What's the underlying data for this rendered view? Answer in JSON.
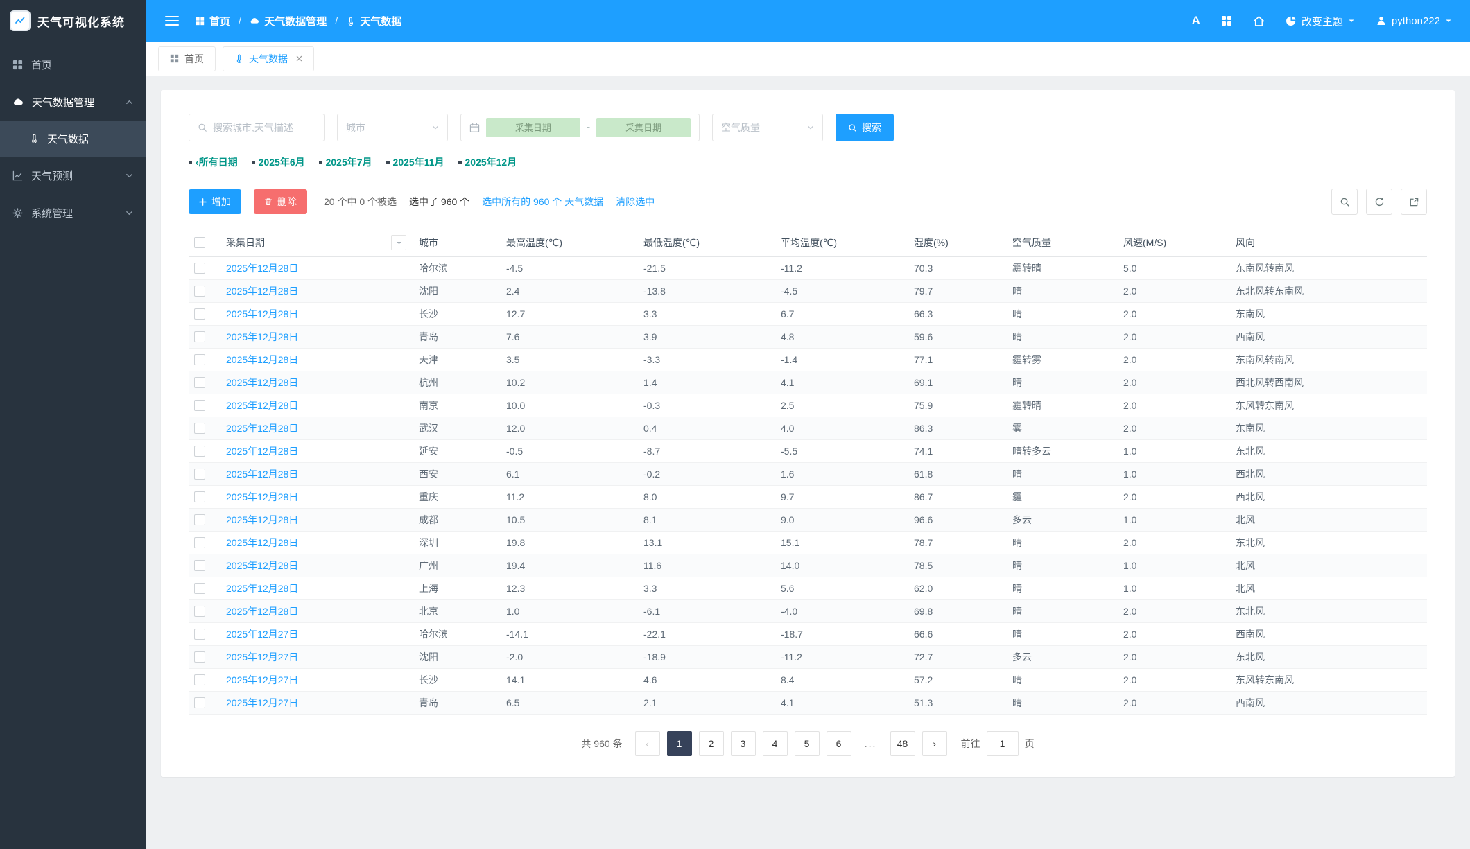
{
  "app": {
    "title": "天气可视化系统",
    "theme_color": "#1e9fff"
  },
  "topbar": {
    "breadcrumb": [
      {
        "label": "首页"
      },
      {
        "label": "天气数据管理"
      },
      {
        "label": "天气数据"
      }
    ],
    "separator": "/",
    "font_icon_label": "A",
    "theme_label": "改变主题",
    "username": "python222"
  },
  "sidebar": {
    "items": [
      {
        "label": "首页"
      },
      {
        "label": "天气数据管理",
        "expanded": true,
        "children": [
          {
            "label": "天气数据",
            "active": true
          }
        ]
      },
      {
        "label": "天气预测"
      },
      {
        "label": "系统管理"
      }
    ]
  },
  "tabs": [
    {
      "label": "首页"
    },
    {
      "label": "天气数据",
      "active": true,
      "closable": true
    }
  ],
  "filters": {
    "search_placeholder": "搜索城市,天气描述",
    "city_placeholder": "城市",
    "date_start_placeholder": "采集日期",
    "date_range_separator": "-",
    "date_end_placeholder": "采集日期",
    "air_quality_placeholder": "空气质量",
    "search_button_label": "搜索",
    "date_links": [
      "‹所有日期",
      "2025年6月",
      "2025年7月",
      "2025年11月",
      "2025年12月"
    ]
  },
  "toolbar": {
    "add_label": "增加",
    "delete_label": "删除",
    "selection_summary": "20 个中 0 个被选",
    "selected_info": "选中了 960 个",
    "select_all_label": "选中所有的 960 个 天气数据",
    "clear_selection_label": "清除选中"
  },
  "table": {
    "columns": [
      "采集日期",
      "城市",
      "最高温度(℃)",
      "最低温度(℃)",
      "平均温度(℃)",
      "湿度(%)",
      "空气质量",
      "风速(M/S)",
      "风向"
    ],
    "rows": [
      {
        "date": "2025年12月28日",
        "city": "哈尔滨",
        "high": "-4.5",
        "low": "-21.5",
        "avg": "-11.2",
        "humidity": "70.3",
        "air": "霾转晴",
        "wind_speed": "5.0",
        "wind_dir": "东南风转南风"
      },
      {
        "date": "2025年12月28日",
        "city": "沈阳",
        "high": "2.4",
        "low": "-13.8",
        "avg": "-4.5",
        "humidity": "79.7",
        "air": "晴",
        "wind_speed": "2.0",
        "wind_dir": "东北风转东南风"
      },
      {
        "date": "2025年12月28日",
        "city": "长沙",
        "high": "12.7",
        "low": "3.3",
        "avg": "6.7",
        "humidity": "66.3",
        "air": "晴",
        "wind_speed": "2.0",
        "wind_dir": "东南风"
      },
      {
        "date": "2025年12月28日",
        "city": "青岛",
        "high": "7.6",
        "low": "3.9",
        "avg": "4.8",
        "humidity": "59.6",
        "air": "晴",
        "wind_speed": "2.0",
        "wind_dir": "西南风"
      },
      {
        "date": "2025年12月28日",
        "city": "天津",
        "high": "3.5",
        "low": "-3.3",
        "avg": "-1.4",
        "humidity": "77.1",
        "air": "霾转雾",
        "wind_speed": "2.0",
        "wind_dir": "东南风转南风"
      },
      {
        "date": "2025年12月28日",
        "city": "杭州",
        "high": "10.2",
        "low": "1.4",
        "avg": "4.1",
        "humidity": "69.1",
        "air": "晴",
        "wind_speed": "2.0",
        "wind_dir": "西北风转西南风"
      },
      {
        "date": "2025年12月28日",
        "city": "南京",
        "high": "10.0",
        "low": "-0.3",
        "avg": "2.5",
        "humidity": "75.9",
        "air": "霾转晴",
        "wind_speed": "2.0",
        "wind_dir": "东风转东南风"
      },
      {
        "date": "2025年12月28日",
        "city": "武汉",
        "high": "12.0",
        "low": "0.4",
        "avg": "4.0",
        "humidity": "86.3",
        "air": "雾",
        "wind_speed": "2.0",
        "wind_dir": "东南风"
      },
      {
        "date": "2025年12月28日",
        "city": "延安",
        "high": "-0.5",
        "low": "-8.7",
        "avg": "-5.5",
        "humidity": "74.1",
        "air": "晴转多云",
        "wind_speed": "1.0",
        "wind_dir": "东北风"
      },
      {
        "date": "2025年12月28日",
        "city": "西安",
        "high": "6.1",
        "low": "-0.2",
        "avg": "1.6",
        "humidity": "61.8",
        "air": "晴",
        "wind_speed": "1.0",
        "wind_dir": "西北风"
      },
      {
        "date": "2025年12月28日",
        "city": "重庆",
        "high": "11.2",
        "low": "8.0",
        "avg": "9.7",
        "humidity": "86.7",
        "air": "霾",
        "wind_speed": "2.0",
        "wind_dir": "西北风"
      },
      {
        "date": "2025年12月28日",
        "city": "成都",
        "high": "10.5",
        "low": "8.1",
        "avg": "9.0",
        "humidity": "96.6",
        "air": "多云",
        "wind_speed": "1.0",
        "wind_dir": "北风"
      },
      {
        "date": "2025年12月28日",
        "city": "深圳",
        "high": "19.8",
        "low": "13.1",
        "avg": "15.1",
        "humidity": "78.7",
        "air": "晴",
        "wind_speed": "2.0",
        "wind_dir": "东北风"
      },
      {
        "date": "2025年12月28日",
        "city": "广州",
        "high": "19.4",
        "low": "11.6",
        "avg": "14.0",
        "humidity": "78.5",
        "air": "晴",
        "wind_speed": "1.0",
        "wind_dir": "北风"
      },
      {
        "date": "2025年12月28日",
        "city": "上海",
        "high": "12.3",
        "low": "3.3",
        "avg": "5.6",
        "humidity": "62.0",
        "air": "晴",
        "wind_speed": "1.0",
        "wind_dir": "北风"
      },
      {
        "date": "2025年12月28日",
        "city": "北京",
        "high": "1.0",
        "low": "-6.1",
        "avg": "-4.0",
        "humidity": "69.8",
        "air": "晴",
        "wind_speed": "2.0",
        "wind_dir": "东北风"
      },
      {
        "date": "2025年12月27日",
        "city": "哈尔滨",
        "high": "-14.1",
        "low": "-22.1",
        "avg": "-18.7",
        "humidity": "66.6",
        "air": "晴",
        "wind_speed": "2.0",
        "wind_dir": "西南风"
      },
      {
        "date": "2025年12月27日",
        "city": "沈阳",
        "high": "-2.0",
        "low": "-18.9",
        "avg": "-11.2",
        "humidity": "72.7",
        "air": "多云",
        "wind_speed": "2.0",
        "wind_dir": "东北风"
      },
      {
        "date": "2025年12月27日",
        "city": "长沙",
        "high": "14.1",
        "low": "4.6",
        "avg": "8.4",
        "humidity": "57.2",
        "air": "晴",
        "wind_speed": "2.0",
        "wind_dir": "东风转东南风"
      },
      {
        "date": "2025年12月27日",
        "city": "青岛",
        "high": "6.5",
        "low": "2.1",
        "avg": "4.1",
        "humidity": "51.3",
        "air": "晴",
        "wind_speed": "2.0",
        "wind_dir": "西南风"
      }
    ]
  },
  "pagination": {
    "total_label": "共 960 条",
    "prev": "‹",
    "next": "›",
    "pages": [
      "1",
      "2",
      "3",
      "4",
      "5",
      "6",
      "...",
      "48"
    ],
    "active_page": "1",
    "goto_prefix": "前往",
    "goto_value": "1",
    "goto_suffix": "页"
  }
}
